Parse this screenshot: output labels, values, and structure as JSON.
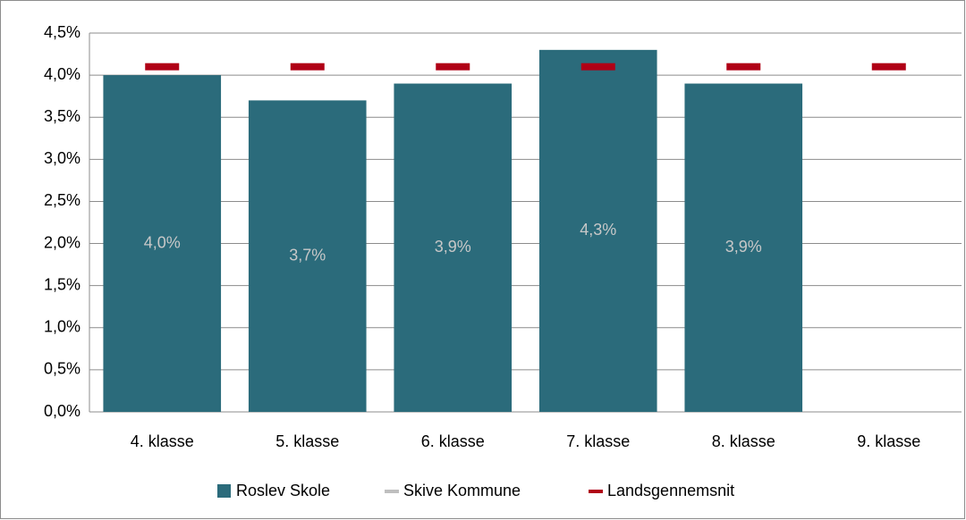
{
  "chart_data": {
    "type": "bar",
    "categories": [
      "4. klasse",
      "5. klasse",
      "6. klasse",
      "7. klasse",
      "8. klasse",
      "9. klasse"
    ],
    "series": [
      {
        "name": "Roslev Skole",
        "type": "bar",
        "color": "#2b6b7b",
        "values": [
          4.0,
          3.7,
          3.9,
          4.3,
          3.9,
          null
        ],
        "value_labels": [
          "4,0%",
          "3,7%",
          "3,9%",
          "4,3%",
          "3,9%",
          null
        ]
      },
      {
        "name": "Skive Kommune",
        "type": "line",
        "color": "#bfbfbf",
        "values": [
          null,
          null,
          null,
          null,
          null,
          null
        ]
      },
      {
        "name": "Landsgennemsnit",
        "type": "marker",
        "color": "#b00016",
        "values": [
          4.1,
          4.1,
          4.1,
          4.1,
          4.1,
          4.1
        ]
      }
    ],
    "ylim": [
      0,
      4.5
    ],
    "yticks": [
      {
        "value": 0,
        "label": "0,0%"
      },
      {
        "value": 0.5,
        "label": "0,5%"
      },
      {
        "value": 1,
        "label": "1,0%"
      },
      {
        "value": 1.5,
        "label": "1,5%"
      },
      {
        "value": 2,
        "label": "2,0%"
      },
      {
        "value": 2.5,
        "label": "2,5%"
      },
      {
        "value": 3,
        "label": "3,0%"
      },
      {
        "value": 3.5,
        "label": "3,5%"
      },
      {
        "value": 4,
        "label": "4,0%"
      },
      {
        "value": 4.5,
        "label": "4,5%"
      }
    ],
    "grid": true,
    "legend": "bottom"
  }
}
